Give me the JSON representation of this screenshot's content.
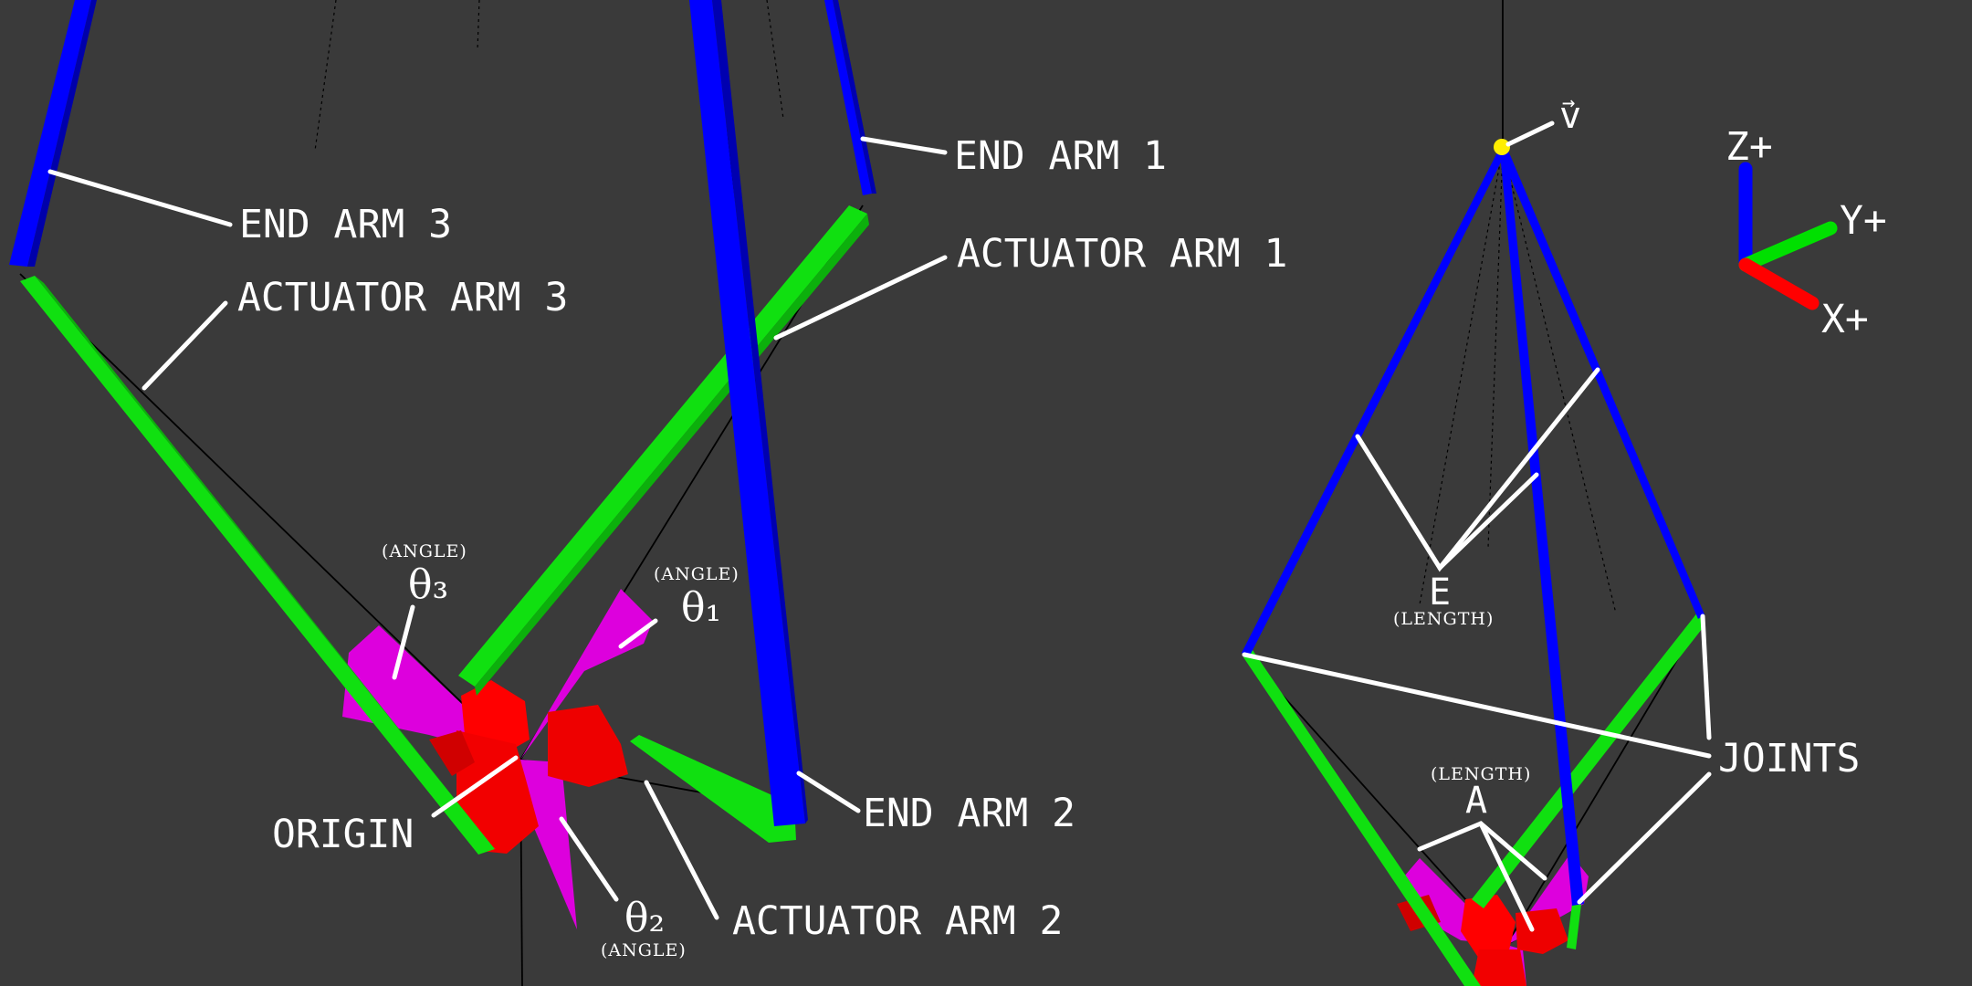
{
  "left_diagram": {
    "end_arm_1": "END ARM 1",
    "end_arm_2": "END ARM 2",
    "end_arm_3": "END ARM 3",
    "actuator_arm_1": "ACTUATOR ARM 1",
    "actuator_arm_2": "ACTUATOR ARM 2",
    "actuator_arm_3": "ACTUATOR ARM 3",
    "origin": "ORIGIN",
    "theta_1": "θ₁",
    "theta_2": "θ₂",
    "theta_3": "θ₃",
    "angle_note": "(ANGLE)"
  },
  "right_diagram": {
    "vector_label": "v",
    "vector_arrow": "→",
    "end_length_symbol": "E",
    "actuator_length_symbol": "A",
    "length_note": "(LENGTH)",
    "joints": "JOINTS"
  },
  "axes": {
    "z": "Z+",
    "y": "Y+",
    "x": "X+",
    "colors": {
      "z": "#0000ff",
      "y": "#00e000",
      "x": "#ff0000"
    }
  },
  "colors": {
    "background": "#3a3a3a",
    "end_arm": "#0000ff",
    "actuator_arm": "#10e010",
    "motor": "#ff0000",
    "angle_wedge": "#dd00dd",
    "end_point": "#ffee00"
  }
}
